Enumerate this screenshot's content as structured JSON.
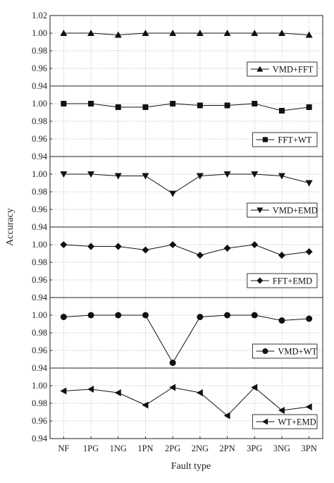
{
  "chart_data": {
    "type": "line",
    "ylabel": "Accuracy",
    "xlabel": "Fault type",
    "categories": [
      "NF",
      "1PG",
      "1NG",
      "1PN",
      "2PG",
      "2NG",
      "2PN",
      "3PG",
      "3NG",
      "3PN"
    ],
    "grid": true,
    "legend_placement": "bottom-right of each panel",
    "line_color": "#111111",
    "panels": [
      {
        "name": "VMD+FFT",
        "marker": "triangle-up",
        "ylim": [
          0.94,
          1.02
        ],
        "yticks": [
          "0.94",
          "0.96",
          "0.98",
          "1.00",
          "1.02"
        ],
        "values": [
          1.0,
          1.0,
          0.998,
          1.0,
          1.0,
          1.0,
          1.0,
          1.0,
          1.0,
          0.998
        ]
      },
      {
        "name": "FFT+WT",
        "marker": "square",
        "ylim": [
          0.94,
          1.02
        ],
        "yticks": [
          "0.94",
          "0.96",
          "0.98",
          "1.00"
        ],
        "values": [
          1.0,
          1.0,
          0.996,
          0.996,
          1.0,
          0.998,
          0.998,
          1.0,
          0.992,
          0.996
        ]
      },
      {
        "name": "VMD+EMD",
        "marker": "triangle-down",
        "ylim": [
          0.94,
          1.02
        ],
        "yticks": [
          "0.94",
          "0.96",
          "0.98",
          "1.00"
        ],
        "values": [
          1.0,
          1.0,
          0.998,
          0.998,
          0.978,
          0.998,
          1.0,
          1.0,
          0.998,
          0.99
        ]
      },
      {
        "name": "FFT+EMD",
        "marker": "diamond",
        "ylim": [
          0.94,
          1.02
        ],
        "yticks": [
          "0.94",
          "0.96",
          "0.98",
          "1.00"
        ],
        "values": [
          1.0,
          0.998,
          0.998,
          0.994,
          1.0,
          0.988,
          0.996,
          1.0,
          0.988,
          0.992
        ]
      },
      {
        "name": "VMD+WT",
        "marker": "circle",
        "ylim": [
          0.94,
          1.02
        ],
        "yticks": [
          "0.94",
          "0.96",
          "0.98",
          "1.00"
        ],
        "values": [
          0.998,
          1.0,
          1.0,
          1.0,
          0.946,
          0.998,
          1.0,
          1.0,
          0.994,
          0.996
        ]
      },
      {
        "name": "WT+EMD",
        "marker": "triangle-left",
        "ylim": [
          0.94,
          1.02
        ],
        "yticks": [
          "0.94",
          "0.96",
          "0.98",
          "1.00"
        ],
        "values": [
          0.994,
          0.996,
          0.992,
          0.978,
          0.998,
          0.992,
          0.966,
          0.998,
          0.972,
          0.976
        ]
      }
    ]
  }
}
